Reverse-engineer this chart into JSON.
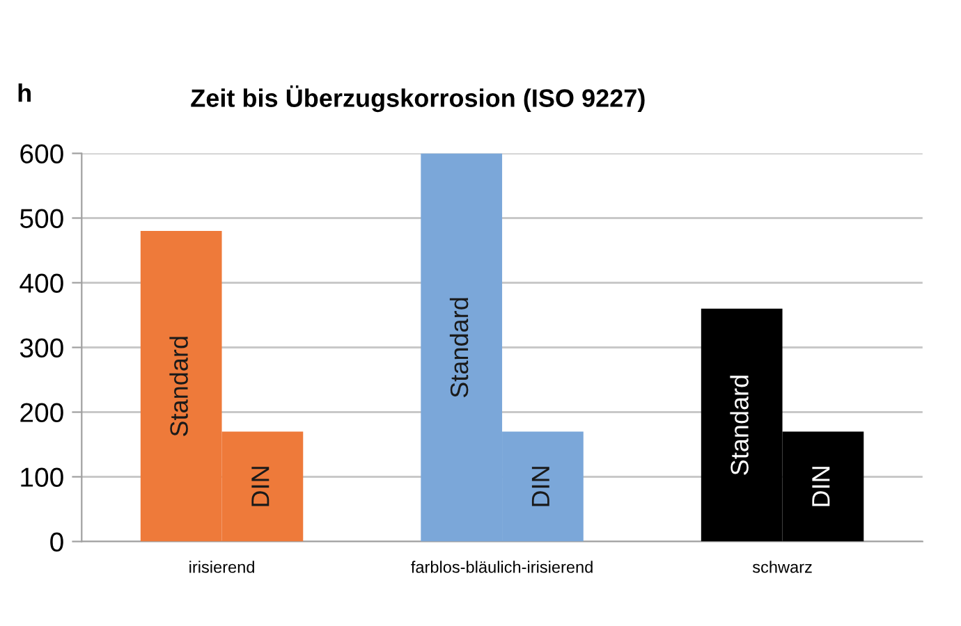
{
  "chart_data": {
    "type": "bar",
    "title": "Zeit bis Überzugskorrosion (ISO 9227)",
    "ylabel": "h",
    "categories": [
      "irisierend",
      "farblos-bläulich-irisierend",
      "schwarz"
    ],
    "series": [
      {
        "name": "Standard",
        "colors": [
          "#ee7a3a",
          "#7ba7d9",
          "#000000"
        ],
        "values": [
          480,
          600,
          360
        ]
      },
      {
        "name": "DIN",
        "colors": [
          "#ee7a3a",
          "#7ba7d9",
          "#000000"
        ],
        "values": [
          170,
          170,
          170
        ]
      }
    ],
    "ylim": [
      0,
      600
    ],
    "yticks": [
      0,
      100,
      200,
      300,
      400,
      500,
      600
    ],
    "grid": "y"
  }
}
